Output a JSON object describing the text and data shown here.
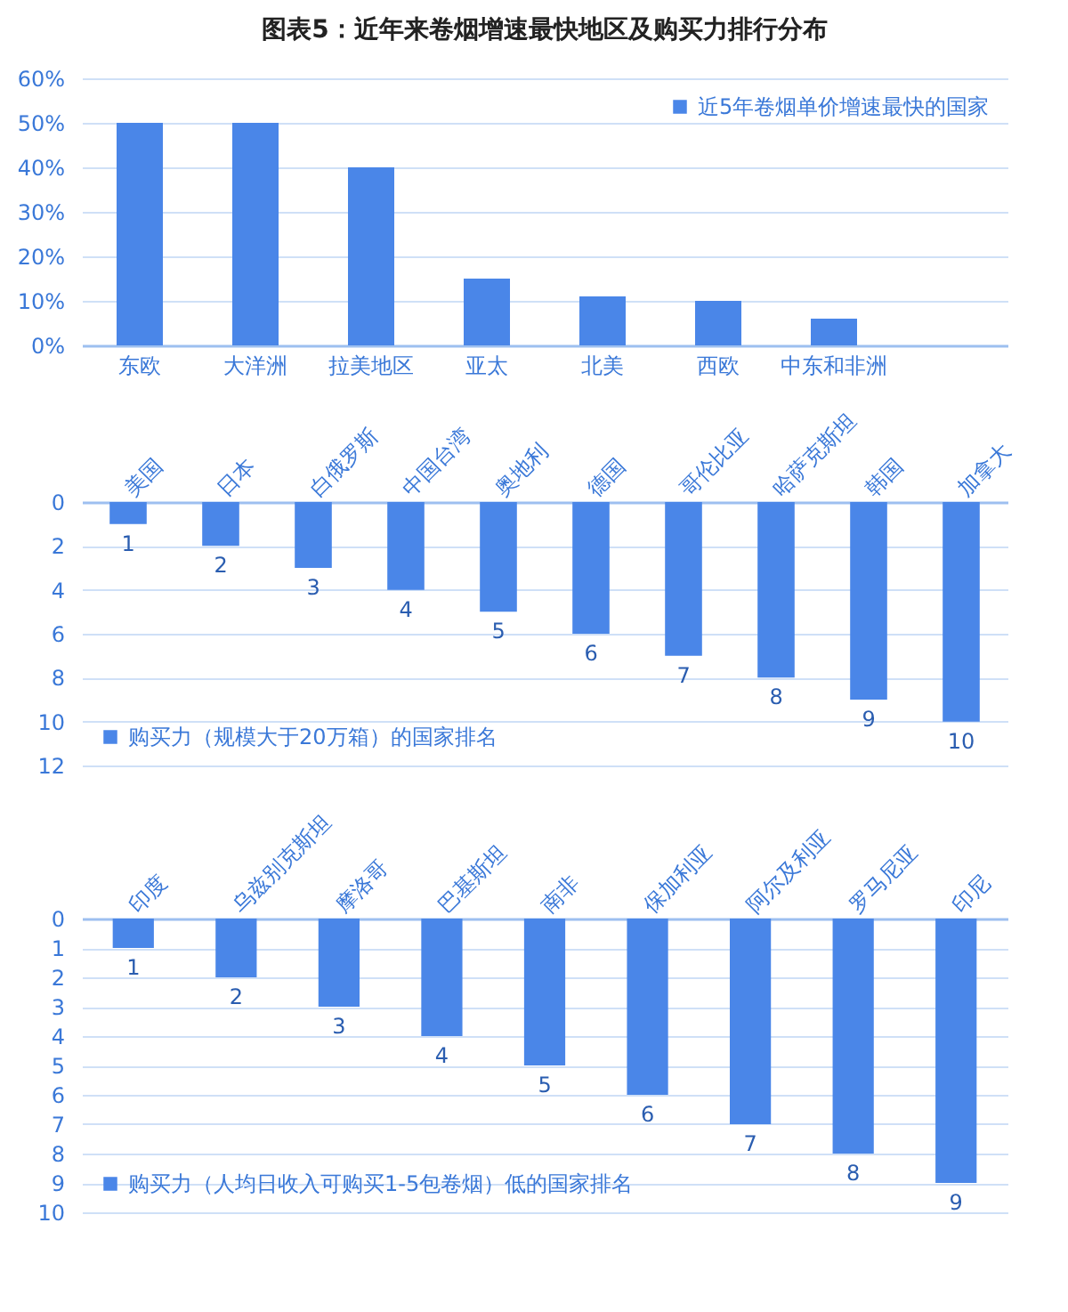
{
  "chart_data": [
    {
      "type": "bar",
      "title": "图表5：近年来卷烟增速最快地区及购买力排行分布",
      "categories": [
        "东欧",
        "大洋洲",
        "拉美地区",
        "亚太",
        "北美",
        "西欧",
        "中东和非洲",
        null
      ],
      "series": [
        {
          "name": "近5年卷烟单价增速最快的国家",
          "color": "#4a86e8",
          "values": [
            50,
            50,
            40,
            15,
            11,
            10,
            6,
            null
          ]
        }
      ],
      "ylim": [
        0,
        60
      ],
      "yticks": [
        {
          "value": 0,
          "label": "0%"
        },
        {
          "value": 10,
          "label": "10%"
        },
        {
          "value": 20,
          "label": "20%"
        },
        {
          "value": 30,
          "label": "30%"
        },
        {
          "value": 40,
          "label": "40%"
        },
        {
          "value": 50,
          "label": "50%"
        },
        {
          "value": 60,
          "label": "60%"
        }
      ],
      "grid": "y",
      "legend": "top right"
    },
    {
      "type": "bar",
      "categories": [
        "美国",
        "日本",
        "白俄罗斯",
        "中国台湾",
        "奥地利",
        "德国",
        "哥伦比亚",
        "哈萨克斯坦",
        "韩国",
        "加拿大"
      ],
      "series": [
        {
          "name": "购买力（规模大于20万箱）的国家排名",
          "color": "#4a86e8",
          "values": [
            1,
            2,
            3,
            4,
            5,
            6,
            7,
            8,
            9,
            10
          ]
        }
      ],
      "ylim": [
        12,
        0
      ],
      "yticks": [
        0,
        2,
        4,
        6,
        8,
        10,
        12
      ],
      "grid": "y",
      "legend": "bottom left",
      "data_labels": true
    },
    {
      "type": "bar",
      "categories": [
        "印度",
        "乌兹别克斯坦",
        "摩洛哥",
        "巴基斯坦",
        "南非",
        "保加利亚",
        "阿尔及利亚",
        "罗马尼亚",
        "印尼"
      ],
      "series": [
        {
          "name": "购买力（人均日收入可购买1-5包卷烟）低的国家排名",
          "color": "#4a86e8",
          "values": [
            1,
            2,
            3,
            4,
            5,
            6,
            7,
            8,
            9
          ]
        }
      ],
      "ylim": [
        10,
        0
      ],
      "yticks": [
        0,
        1,
        2,
        3,
        4,
        5,
        6,
        7,
        8,
        9,
        10
      ],
      "grid": "y",
      "legend": "bottom left",
      "data_labels": true
    }
  ]
}
